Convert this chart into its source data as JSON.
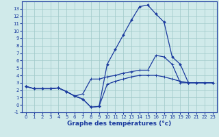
{
  "xlabel": "Graphe des températures (°c)",
  "bg_color": "#d0eaea",
  "line_color": "#1a3a9e",
  "grid_color": "#9fc8c8",
  "hours": [
    0,
    1,
    2,
    3,
    4,
    5,
    6,
    7,
    8,
    9,
    10,
    11,
    12,
    13,
    14,
    15,
    16,
    17,
    18,
    19,
    20,
    21,
    22,
    23
  ],
  "line_temp": [
    2.5,
    2.2,
    2.2,
    2.2,
    2.3,
    1.8,
    1.2,
    0.8,
    -0.3,
    -0.2,
    5.5,
    7.5,
    9.5,
    11.5,
    13.3,
    13.5,
    12.3,
    11.2,
    6.5,
    5.5,
    3.0,
    3.0,
    3.0,
    3.0
  ],
  "line_max": [
    2.5,
    2.2,
    2.2,
    2.2,
    2.3,
    1.8,
    1.2,
    1.5,
    3.5,
    3.5,
    3.8,
    4.0,
    4.3,
    4.5,
    4.7,
    4.7,
    6.7,
    6.5,
    5.5,
    3.0,
    3.0,
    3.0,
    3.0,
    3.0
  ],
  "line_min": [
    2.5,
    2.2,
    2.2,
    2.2,
    2.3,
    1.8,
    1.2,
    0.8,
    -0.3,
    -0.2,
    2.8,
    3.2,
    3.5,
    3.8,
    4.0,
    4.0,
    4.0,
    3.8,
    3.5,
    3.2,
    3.0,
    3.0,
    3.0,
    3.0
  ],
  "ylim_min": -0.8,
  "ylim_max": 14,
  "yticks": [
    -1,
    0,
    1,
    2,
    3,
    4,
    5,
    6,
    7,
    8,
    9,
    10,
    11,
    12,
    13
  ],
  "xticks": [
    0,
    1,
    2,
    3,
    4,
    5,
    6,
    7,
    8,
    9,
    10,
    11,
    12,
    13,
    14,
    15,
    16,
    17,
    18,
    19,
    20,
    21,
    22,
    23
  ],
  "tick_fontsize": 5,
  "xlabel_fontsize": 6.5
}
